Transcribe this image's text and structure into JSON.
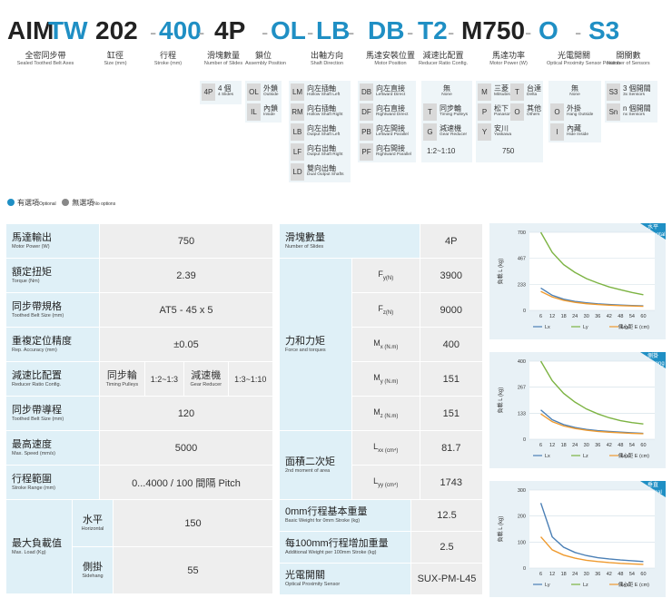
{
  "model": {
    "segments": [
      {
        "text": "AIM",
        "color": "dark"
      },
      {
        "text": "TW",
        "color": "blue"
      },
      {
        "text": "202",
        "color": "dark"
      },
      {
        "text": "-",
        "color": "dash"
      },
      {
        "text": "400",
        "color": "blue"
      },
      {
        "text": "-",
        "color": "dash"
      },
      {
        "text": "4P",
        "color": "dark"
      },
      {
        "text": "-",
        "color": "dash"
      },
      {
        "text": "OL",
        "color": "blue"
      },
      {
        "text": "-",
        "color": "dash"
      },
      {
        "text": "LB",
        "color": "blue"
      },
      {
        "text": "-",
        "color": "dash"
      },
      {
        "text": "DB",
        "color": "blue"
      },
      {
        "text": "-",
        "color": "dash"
      },
      {
        "text": "T2",
        "color": "blue"
      },
      {
        "text": "-",
        "color": "dash"
      },
      {
        "text": "M750",
        "color": "dark"
      },
      {
        "text": "-",
        "color": "dash"
      },
      {
        "text": "O",
        "color": "blue"
      },
      {
        "text": "-",
        "color": "dash"
      },
      {
        "text": "S3",
        "color": "blue"
      }
    ],
    "labels": [
      {
        "zh": "全密同步帶",
        "en": "Sealed Toothed Belt Axes"
      },
      {
        "zh": "缸徑",
        "en": "Size (mm)"
      },
      {
        "zh": "行程",
        "en": "Stroke (mm)"
      },
      {
        "zh": "滑塊數量",
        "en": "Number of Slides"
      },
      {
        "zh": "鎖位",
        "en": "Assembly Position"
      },
      {
        "zh": "出軸方向",
        "en": "Shaft Direction"
      },
      {
        "zh": "馬達安裝位置",
        "en": "Motor Position"
      },
      {
        "zh": "減速比配置",
        "en": "Reducer Ratio Config."
      },
      {
        "zh": "馬達功率",
        "en": "Motor Power (W)"
      },
      {
        "zh": "光電開關",
        "en": "Optical Proximity Sensor Position"
      },
      {
        "zh": "開關數",
        "en": "Number of Sensors"
      }
    ]
  },
  "options": {
    "slides": {
      "code": "4P",
      "zh": "4 個",
      "en": "4 Slides"
    },
    "position": [
      {
        "code": "OL",
        "zh": "外鎖",
        "en": "Outside"
      },
      {
        "code": "IL",
        "zh": "內鎖",
        "en": "Inside"
      }
    ],
    "shaft": [
      {
        "code": "LM",
        "zh": "向左插軸",
        "en": "Hollow Shaft Left"
      },
      {
        "code": "RM",
        "zh": "向右插軸",
        "en": "Hollow Shaft Right"
      },
      {
        "code": "LB",
        "zh": "向左出軸",
        "en": "Output Shaft Left"
      },
      {
        "code": "LF",
        "zh": "向右出軸",
        "en": "Output Shaft Right"
      },
      {
        "code": "LD",
        "zh": "雙向出軸",
        "en": "Dual Output Shafts"
      }
    ],
    "motor_pos": [
      {
        "code": "DB",
        "zh": "向左直接",
        "en": "Leftward Direct"
      },
      {
        "code": "DF",
        "zh": "向右直接",
        "en": "Rightward Direct"
      },
      {
        "code": "PB",
        "zh": "向左間接",
        "en": "Leftward Parallel"
      },
      {
        "code": "PF",
        "zh": "向右間接",
        "en": "Rightward Parallel"
      }
    ],
    "reducer": {
      "none_zh": "無",
      "none_en": "None",
      "items": [
        {
          "code": "T",
          "zh": "同步輪",
          "en": "Timing Pulleys"
        },
        {
          "code": "G",
          "zh": "減速機",
          "en": "Gear Reducer"
        }
      ],
      "ratio": "1:2~1:10"
    },
    "motor": {
      "items": [
        {
          "code": "M",
          "zh": "三菱",
          "en": "Mitsubishi"
        },
        {
          "code": "T",
          "zh": "台達",
          "en": "Delta"
        },
        {
          "code": "P",
          "zh": "松下",
          "en": "Panasonic"
        },
        {
          "code": "O",
          "zh": "其他",
          "en": "Others"
        },
        {
          "code": "Y",
          "zh": "安川",
          "en": "Yaskawa"
        }
      ],
      "power": "750"
    },
    "sensor_pos": {
      "none_zh": "無",
      "none_en": "None",
      "items": [
        {
          "code": "O",
          "zh": "外掛",
          "en": "Hang Outside"
        },
        {
          "code": "I",
          "zh": "內藏",
          "en": "Hide Inside"
        }
      ]
    },
    "sensors": [
      {
        "code": "S3",
        "zh": "3 個開關",
        "en": "3x Sensors"
      },
      {
        "code": "Sn",
        "zh": "n 個開關",
        "en": "nx Sensors"
      }
    ]
  },
  "legend": {
    "optional_zh": "有選項",
    "optional_en": "Optional",
    "none_zh": "無選項",
    "none_en": "No options",
    "optional_color": "#1f8fc4",
    "none_color": "#888888"
  },
  "left_table": {
    "motor_power": {
      "zh": "馬達輸出",
      "en": "Motor Power (W)",
      "value": "750"
    },
    "torque": {
      "zh": "額定扭矩",
      "en": "Torque (Nm)",
      "value": "2.39"
    },
    "belt": {
      "zh": "同步帶規格",
      "en": "Toothed Belt Size (mm)",
      "value": "AT5 - 45 x 5"
    },
    "accuracy": {
      "zh": "重複定位精度",
      "en": "Rep. Accuracy (mm)",
      "value": "±0.05"
    },
    "reducer": {
      "zh": "減速比配置",
      "en": "Reducer Ratio Config.",
      "t_zh": "同步輪",
      "t_en": "Timing Pulleys",
      "t_val": "1:2~1:3",
      "g_zh": "減速機",
      "g_en": "Gear Reducer",
      "g_val": "1:3~1:10"
    },
    "belt_pitch": {
      "zh": "同步帶導程",
      "en": "Toothed Belt Size (mm)",
      "value": "120"
    },
    "speed": {
      "zh": "最高速度",
      "en": "Max. Speed (mm/s)",
      "value": "5000"
    },
    "stroke": {
      "zh": "行程範圍",
      "en": "Stroke Range (mm)",
      "value": "0...4000 / 100 間隔 Pitch"
    },
    "max_load": {
      "zh": "最大負載值",
      "en": "Max. Load (Kg)",
      "h_zh": "水平",
      "h_en": "Horizontal",
      "h_val": "150",
      "s_zh": "側掛",
      "s_en": "Sidehang",
      "s_val": "55"
    }
  },
  "right_table": {
    "slides": {
      "zh": "滑塊數量",
      "en": "Number of Slides",
      "value": "4P"
    },
    "forces": {
      "zh": "力和力矩",
      "en": "Force and torques",
      "rows": [
        {
          "sym": "F",
          "sub": "y",
          "unit": "(N)",
          "value": "3900"
        },
        {
          "sym": "F",
          "sub": "z",
          "unit": "(N)",
          "value": "9000"
        },
        {
          "sym": "M",
          "sub": "x",
          "unit": " (N.m)",
          "value": "400"
        },
        {
          "sym": "M",
          "sub": "y",
          "unit": " (N.m)",
          "value": "151"
        },
        {
          "sym": "M",
          "sub": "z",
          "unit": " (N.m)",
          "value": "151"
        }
      ]
    },
    "moment": {
      "zh": "面積二次矩",
      "en": "2nd moment of area",
      "rows": [
        {
          "sym": "L",
          "sub": "xx",
          "unit": " (cm⁴)",
          "value": "81.7"
        },
        {
          "sym": "L",
          "sub": "yy",
          "unit": " (cm⁴)",
          "value": "1743"
        }
      ]
    },
    "base_weight": {
      "zh": "0mm行程基本重量",
      "en": "Basic Weight for 0mm Stroke (kg)",
      "value": "12.5"
    },
    "add_weight": {
      "zh": "每100mm行程增加重量",
      "en": "Additional Weight per 100mm Stroke (kg)",
      "value": "2.5"
    },
    "sensor": {
      "zh": "光電開關",
      "en": "Optical Proximity Sensor",
      "value": "SUX-PM-L45"
    }
  },
  "chart_data": [
    {
      "type": "line",
      "tag": "水平 Horizontal",
      "ylabel": "負載 L (kg)",
      "xlabel": "偏心距 E (cm)",
      "x": [
        6,
        12,
        18,
        24,
        30,
        36,
        42,
        48,
        54,
        60
      ],
      "yticks": [
        0,
        233,
        467,
        700
      ],
      "ylim": [
        0,
        700
      ],
      "series": [
        {
          "name": "Lx",
          "color": "#4a7fb5",
          "values": [
            200,
            135,
            100,
            80,
            68,
            58,
            52,
            47,
            43,
            40
          ]
        },
        {
          "name": "Ly",
          "color": "#7cb342",
          "values": [
            700,
            520,
            410,
            340,
            285,
            245,
            210,
            185,
            160,
            140
          ]
        },
        {
          "name": "Lxy",
          "color": "#ef9a2e",
          "values": [
            170,
            120,
            90,
            72,
            60,
            52,
            46,
            42,
            39,
            36
          ]
        }
      ]
    },
    {
      "type": "line",
      "tag": "側掛 Sidehang",
      "ylabel": "負載 L (kg)",
      "xlabel": "偏心距 E (cm)",
      "x": [
        6,
        12,
        18,
        24,
        30,
        36,
        42,
        48,
        54,
        60
      ],
      "yticks": [
        0,
        133,
        267,
        400
      ],
      "ylim": [
        0,
        400
      ],
      "series": [
        {
          "name": "Lx",
          "color": "#4a7fb5",
          "values": [
            150,
            100,
            75,
            60,
            50,
            44,
            40,
            36,
            33,
            30
          ]
        },
        {
          "name": "Lz",
          "color": "#7cb342",
          "values": [
            400,
            300,
            235,
            190,
            155,
            130,
            110,
            95,
            85,
            78
          ]
        },
        {
          "name": "Lxz",
          "color": "#ef9a2e",
          "values": [
            130,
            90,
            68,
            55,
            46,
            40,
            36,
            33,
            30,
            28
          ]
        }
      ]
    },
    {
      "type": "line",
      "tag": "垂直 Vertical",
      "ylabel": "負載 L (kg)",
      "xlabel": "偏心距 E (cm)",
      "x": [
        6,
        12,
        18,
        24,
        30,
        36,
        42,
        48,
        54,
        60
      ],
      "yticks": [
        0,
        100,
        200,
        300
      ],
      "ylim": [
        0,
        300
      ],
      "series": [
        {
          "name": "Ly",
          "color": "#4a7fb5",
          "values": [
            250,
            120,
            80,
            60,
            48,
            40,
            35,
            31,
            28,
            25
          ]
        },
        {
          "name": "Lz",
          "color": "#7cb342",
          "values": [
            null,
            null,
            null,
            null,
            null,
            null,
            null,
            null,
            null,
            null
          ]
        },
        {
          "name": "Lyz",
          "color": "#ef9a2e",
          "values": [
            120,
            70,
            50,
            38,
            30,
            25,
            21,
            18,
            16,
            14
          ]
        }
      ]
    }
  ]
}
